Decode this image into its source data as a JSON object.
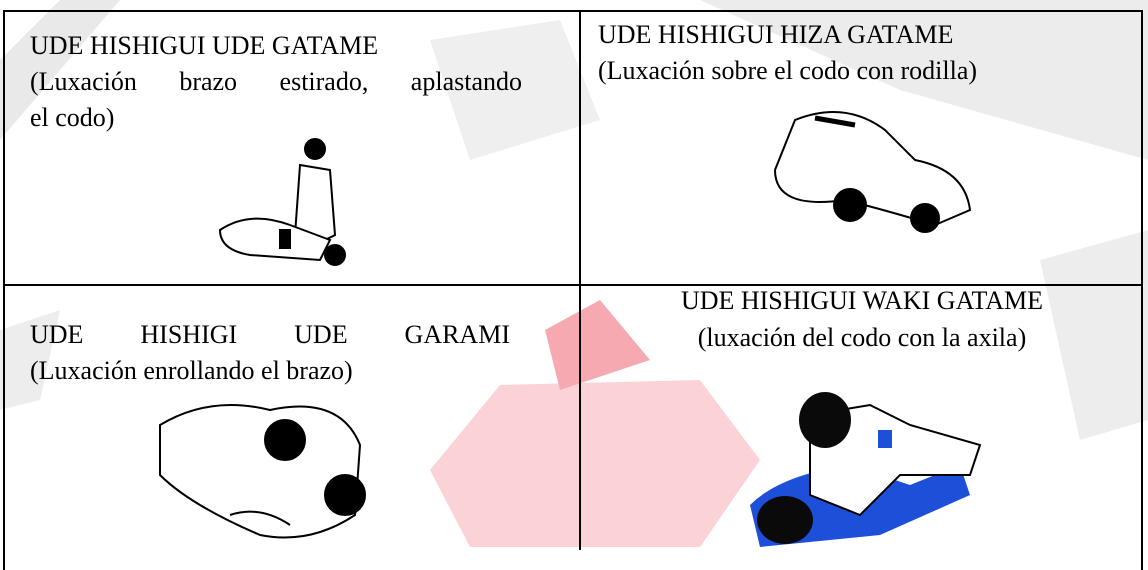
{
  "table": {
    "rows": [
      [
        {
          "title": "UDE HISHIGUI UDE GATAME",
          "subtitle": "(Luxación brazo estirado, aplastando"
        },
        {
          "title": "UDE HISHIGUI HIZA GATAME",
          "subtitle": "(Luxación sobre el codo con rodilla)"
        }
      ],
      [
        {
          "title": "UDE HISHIGI UDE GARAMI",
          "subtitle": "(Luxación enrollando el brazo)"
        },
        {
          "title": "UDE HISHIGUI WAKI GATAME",
          "subtitle": "(luxación del codo con la axila)"
        }
      ]
    ],
    "extra": {
      "line2": "el codo)"
    }
  }
}
